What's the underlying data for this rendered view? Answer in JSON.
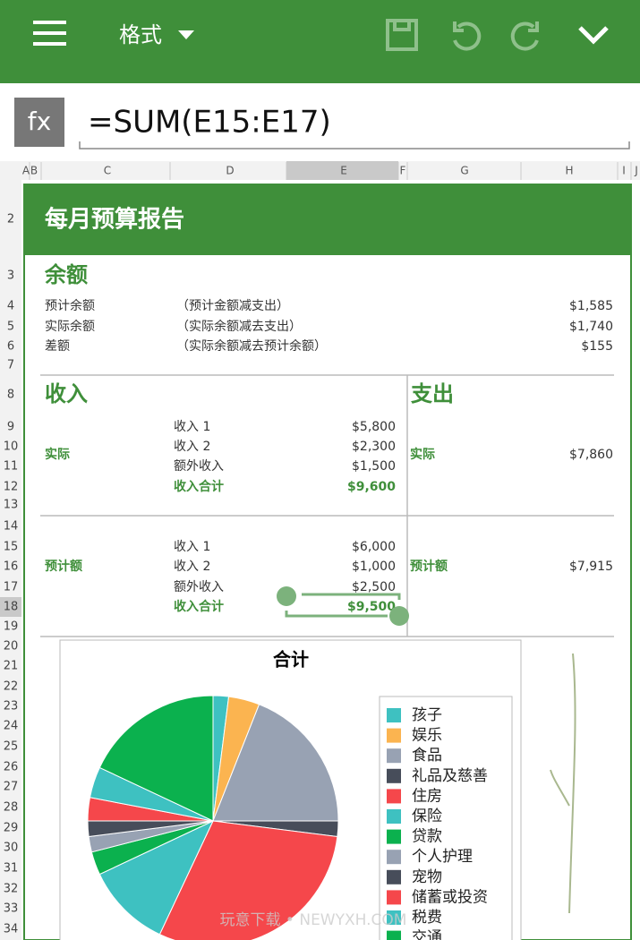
{
  "toolbar": {
    "menu_label": "格式"
  },
  "formula_bar": {
    "fx": "fx",
    "formula": "=SUM(E15:E17)"
  },
  "columns": [
    "A",
    "B",
    "C",
    "D",
    "E",
    "F",
    "G",
    "H",
    "I",
    "J"
  ],
  "rows": [
    2,
    3,
    4,
    5,
    6,
    7,
    8,
    9,
    10,
    11,
    12,
    13,
    14,
    15,
    16,
    17,
    18,
    19,
    20,
    21,
    22,
    23,
    24,
    25,
    26,
    27,
    28,
    29,
    30,
    31,
    32,
    33,
    34
  ],
  "report": {
    "title": "每月预算报告",
    "balance": {
      "heading": "余额",
      "rows": [
        [
          "预计余额",
          "（预计金额减支出）",
          "$1,585"
        ],
        [
          "实际余额",
          "（实际余额减去支出）",
          "$1,740"
        ],
        [
          "差额",
          "（实际余额减去预计余额）",
          "$155"
        ]
      ]
    },
    "income": {
      "heading": "收入",
      "actual": {
        "label": "实际",
        "items": [
          [
            "收入 1",
            "$5,800"
          ],
          [
            "收入 2",
            "$2,300"
          ],
          [
            "额外收入",
            "$1,500"
          ],
          [
            "收入合计",
            "$9,600"
          ]
        ]
      },
      "budget": {
        "label": "预计额",
        "items": [
          [
            "收入 1",
            "$6,000"
          ],
          [
            "收入 2",
            "$1,000"
          ],
          [
            "额外收入",
            "$2,500"
          ],
          [
            "收入合计",
            "$9,500"
          ]
        ]
      }
    },
    "expense": {
      "heading": "支出",
      "actual": {
        "label": "实际",
        "value": "$7,860"
      },
      "budget": {
        "label": "预计额",
        "value": "$7,915"
      }
    }
  },
  "chart_data": {
    "type": "pie",
    "title": "合计",
    "categories": [
      "孩子",
      "娱乐",
      "食品",
      "礼品及慈善",
      "住房",
      "保险",
      "贷款",
      "个人护理",
      "宠物",
      "储蓄或投资",
      "税费",
      "交通"
    ],
    "values": [
      2,
      4,
      19,
      2,
      30,
      11,
      3,
      2,
      2,
      3,
      4,
      18
    ],
    "colors": [
      "#3ec1c1",
      "#fbb450",
      "#98a2b3",
      "#474d5a",
      "#f5474b",
      "#3ec1c1",
      "#0bb14e",
      "#98a2b3",
      "#474d5a",
      "#f5474b",
      "#3ec1c1",
      "#0bb14e"
    ]
  },
  "watermark": "玩意下载 • NEWYXH.COM"
}
